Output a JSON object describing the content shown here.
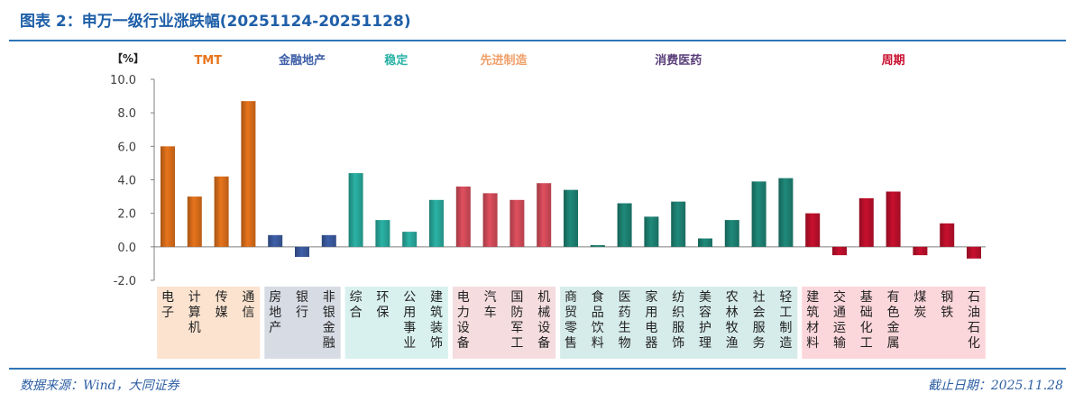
{
  "header": {
    "title": "图表 2：申万一级行业涨跌幅(20251124-20251128)"
  },
  "footer": {
    "source": "数据来源：Wind，大同证券",
    "date": "截止日期：2025.11.28"
  },
  "chart_data": {
    "type": "bar",
    "title": "申万一级行业涨跌幅(20251124-20251128)",
    "unit_label": "【%】",
    "ylim": [
      -2,
      10
    ],
    "yticks": [
      "10.0",
      "8.0",
      "6.0",
      "4.0",
      "2.0",
      "0.0",
      "-2.0"
    ],
    "ytick_values": [
      10,
      8,
      6,
      4,
      2,
      0,
      -2
    ],
    "groups": [
      {
        "name": "TMT",
        "color": "#e8741c",
        "bg": "#fbe3cf",
        "label_color": "#e8741c",
        "categories": [
          "电子",
          "计算机",
          "传媒",
          "通信"
        ],
        "values": [
          6.0,
          3.0,
          4.2,
          8.7
        ]
      },
      {
        "name": "金融地产",
        "color": "#3e5fa8",
        "bg": "#d7dbe4",
        "label_color": "#3e5fa8",
        "categories": [
          "房地产",
          "银行",
          "非银金融"
        ],
        "values": [
          0.7,
          -0.6,
          0.7
        ]
      },
      {
        "name": "稳定",
        "color": "#2bb3a6",
        "bg": "#d8f1ee",
        "label_color": "#2bb3a6",
        "categories": [
          "综合",
          "环保",
          "公用事业",
          "建筑装饰"
        ],
        "values": [
          4.4,
          1.6,
          0.9,
          2.8
        ]
      },
      {
        "name": "先进制造",
        "color": "#e0505f",
        "bg": "#f4dcdf",
        "label_color": "#f0a06a",
        "categories": [
          "电力设备",
          "汽车",
          "国防军工",
          "机械设备"
        ],
        "values": [
          3.6,
          3.2,
          2.8,
          3.8
        ]
      },
      {
        "name": "消费医药",
        "color": "#1f8a7a",
        "bg": "#d6ecea",
        "label_color": "#5a3e7a",
        "categories": [
          "商贸零售",
          "食品饮料",
          "医药生物",
          "家用电器",
          "纺织服饰",
          "美容护理",
          "农林牧渔",
          "社会服务",
          "轻工制造"
        ],
        "values": [
          3.4,
          0.1,
          2.6,
          1.8,
          2.7,
          0.5,
          1.6,
          3.9,
          4.1
        ]
      },
      {
        "name": "周期",
        "color": "#c8102e",
        "bg": "#fbd6da",
        "label_color": "#c8102e",
        "categories": [
          "建筑材料",
          "交通运输",
          "基础化工",
          "有色金属",
          "煤炭",
          "钢铁",
          "石油石化"
        ],
        "values": [
          2.0,
          -0.5,
          2.9,
          3.3,
          -0.5,
          1.4,
          -0.7
        ]
      }
    ]
  }
}
